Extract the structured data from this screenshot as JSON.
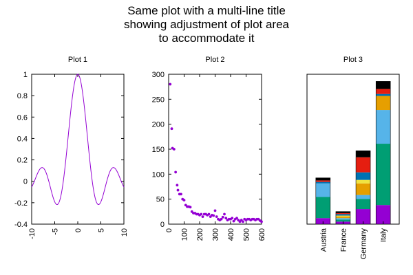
{
  "figure": {
    "title_lines": [
      "Same plot with a multi-line title",
      "showing adjustment of plot area",
      "to accommodate it"
    ]
  },
  "colors": {
    "line": "#9400d3",
    "points": "#9400d3",
    "axes": "#000000",
    "stack": [
      "#9400d3",
      "#009e73",
      "#56b4e9",
      "#e69f00",
      "#f0e442",
      "#0072b2",
      "#e51e10",
      "#000000"
    ]
  },
  "chart_data": [
    {
      "type": "line",
      "title": "Plot 1",
      "function": "sin(x)/x",
      "x_range": [
        -10,
        10
      ],
      "ylim": [
        -0.4,
        1
      ],
      "x_ticks": [
        -10,
        -5,
        0,
        5,
        10
      ],
      "x_tick_labels": [
        "-10",
        "-5",
        "0",
        "5",
        "10"
      ],
      "y_ticks": [
        -0.4,
        -0.2,
        0,
        0.2,
        0.4,
        0.6,
        0.8,
        1
      ],
      "y_tick_labels": [
        "-0.4",
        "-0.2",
        "0",
        "0.2",
        "0.4",
        "0.6",
        "0.8",
        "1"
      ],
      "x_tick_label_rotation": -90,
      "grid": false
    },
    {
      "type": "scatter",
      "title": "Plot 2",
      "xlim": [
        0,
        600
      ],
      "ylim": [
        0,
        300
      ],
      "x_ticks": [
        0,
        100,
        200,
        300,
        400,
        500,
        600
      ],
      "x_tick_labels": [
        "0",
        "100",
        "200",
        "300",
        "400",
        "500",
        "600"
      ],
      "y_ticks": [
        0,
        50,
        100,
        150,
        200,
        250,
        300
      ],
      "y_tick_labels": [
        "0",
        "50",
        "100",
        "150",
        "200",
        "250",
        "300"
      ],
      "x_tick_label_rotation": -90,
      "grid": false,
      "points": [
        [
          10,
          280
        ],
        [
          20,
          191
        ],
        [
          25,
          152
        ],
        [
          35,
          150
        ],
        [
          45,
          104
        ],
        [
          55,
          78
        ],
        [
          60,
          68
        ],
        [
          70,
          60
        ],
        [
          80,
          60
        ],
        [
          90,
          50
        ],
        [
          100,
          48
        ],
        [
          110,
          38
        ],
        [
          120,
          35
        ],
        [
          130,
          35
        ],
        [
          140,
          34
        ],
        [
          150,
          25
        ],
        [
          160,
          22
        ],
        [
          170,
          22
        ],
        [
          180,
          20
        ],
        [
          190,
          20
        ],
        [
          200,
          18
        ],
        [
          210,
          20
        ],
        [
          220,
          15
        ],
        [
          230,
          20
        ],
        [
          240,
          20
        ],
        [
          250,
          18
        ],
        [
          260,
          20
        ],
        [
          270,
          15
        ],
        [
          280,
          18
        ],
        [
          290,
          17
        ],
        [
          300,
          27
        ],
        [
          310,
          15
        ],
        [
          320,
          10
        ],
        [
          330,
          8
        ],
        [
          340,
          10
        ],
        [
          350,
          14
        ],
        [
          360,
          20
        ],
        [
          370,
          12
        ],
        [
          380,
          8
        ],
        [
          390,
          10
        ],
        [
          400,
          10
        ],
        [
          410,
          12
        ],
        [
          420,
          6
        ],
        [
          430,
          10
        ],
        [
          440,
          12
        ],
        [
          450,
          8
        ],
        [
          460,
          5
        ],
        [
          470,
          8
        ],
        [
          480,
          5
        ],
        [
          490,
          10
        ],
        [
          500,
          8
        ],
        [
          510,
          10
        ],
        [
          520,
          10
        ],
        [
          530,
          8
        ],
        [
          540,
          10
        ],
        [
          550,
          10
        ],
        [
          560,
          8
        ],
        [
          570,
          10
        ],
        [
          580,
          10
        ],
        [
          590,
          7
        ],
        [
          600,
          5
        ]
      ]
    },
    {
      "type": "bar",
      "stacked": true,
      "title": "Plot 3",
      "categories": [
        "Austria",
        "France",
        "Germany",
        "Italy"
      ],
      "x_tick_label_rotation": -90,
      "y_axis_shown": false,
      "series": [
        {
          "values": [
            12,
            5,
            30,
            38
          ]
        },
        {
          "values": [
            42,
            4,
            20,
            122
          ]
        },
        {
          "values": [
            27,
            3,
            8,
            67
          ]
        },
        {
          "values": [
            0,
            3,
            23,
            28
          ]
        },
        {
          "values": [
            0,
            2,
            7,
            0
          ]
        },
        {
          "values": [
            3,
            3,
            15,
            4
          ]
        },
        {
          "values": [
            3,
            2,
            30,
            10
          ]
        },
        {
          "values": [
            5,
            3,
            13,
            15
          ]
        }
      ]
    }
  ]
}
